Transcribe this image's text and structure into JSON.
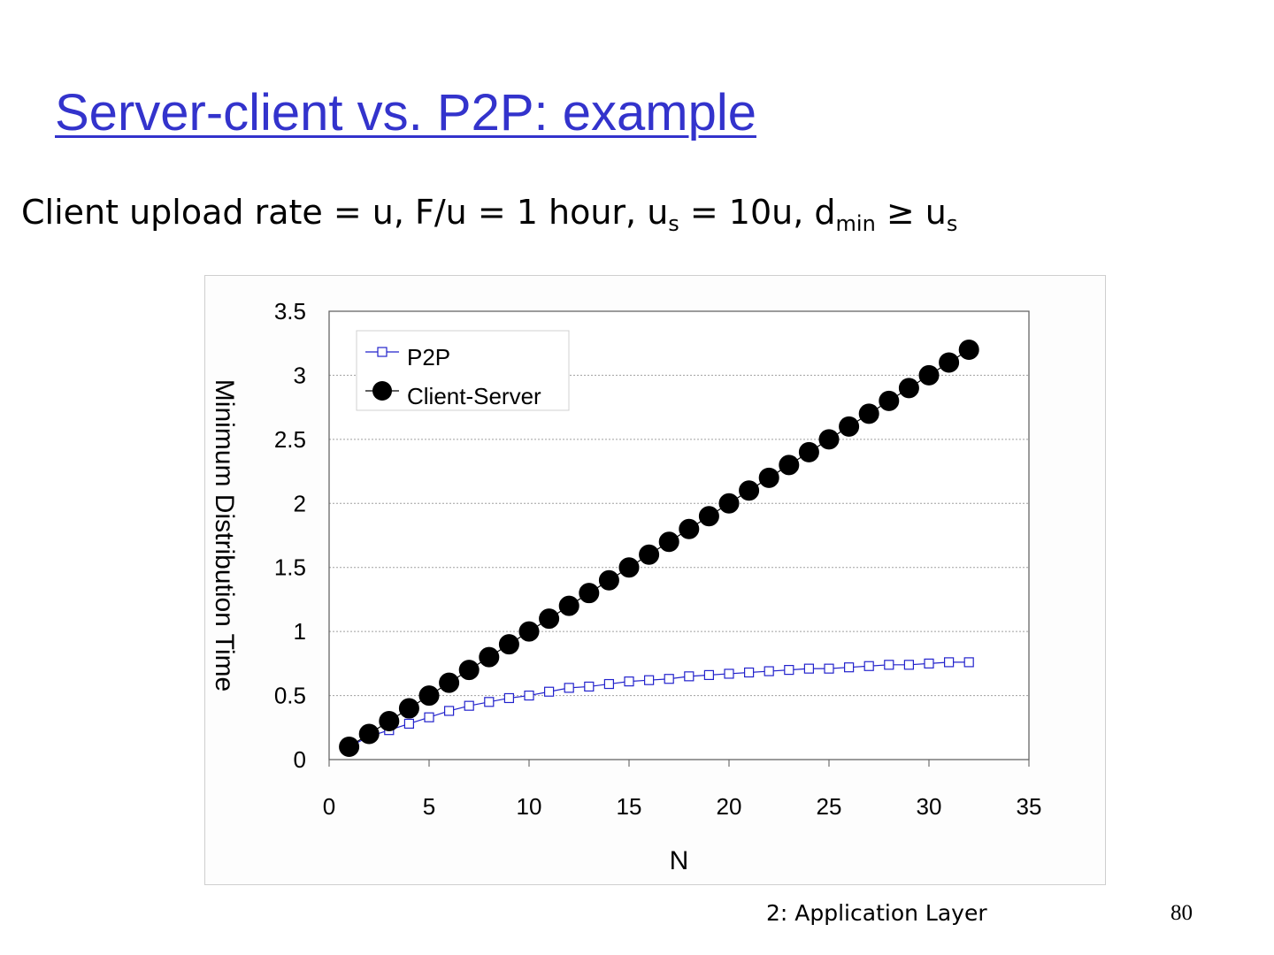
{
  "slide": {
    "title": "Server-client vs. P2P: example",
    "formula": {
      "part1": "Client upload rate = u,  F/u = 1 hour,  u",
      "sub1": "s",
      "part2": " = 10u,  d",
      "sub2": "min",
      "part3": " ≥ u",
      "sub3": "s"
    },
    "footer_label": "2: Application Layer",
    "page_number": "80"
  },
  "colors": {
    "title": "#3333cc",
    "p2p": "#2222cc",
    "client_server": "#000000",
    "gridline": "#a0a0a0"
  },
  "chart_data": {
    "type": "line",
    "title": "",
    "xlabel": "N",
    "ylabel": "Minimum Distribution Time",
    "xlim": [
      0,
      35
    ],
    "ylim": [
      0,
      3.5
    ],
    "xticks": [
      "0",
      "5",
      "10",
      "15",
      "20",
      "25",
      "30",
      "35"
    ],
    "yticks": [
      "0",
      "0.5",
      "1",
      "1.5",
      "2",
      "2.5",
      "3",
      "3.5"
    ],
    "grid": "horizontal dotted",
    "legend_position": "top-left",
    "x": [
      1,
      2,
      3,
      4,
      5,
      6,
      7,
      8,
      9,
      10,
      11,
      12,
      13,
      14,
      15,
      16,
      17,
      18,
      19,
      20,
      21,
      22,
      23,
      24,
      25,
      26,
      27,
      28,
      29,
      30,
      31,
      32
    ],
    "series": [
      {
        "name": "P2P",
        "marker": "open-square",
        "values": [
          0.1,
          0.18,
          0.23,
          0.28,
          0.33,
          0.38,
          0.42,
          0.45,
          0.48,
          0.5,
          0.53,
          0.56,
          0.57,
          0.59,
          0.61,
          0.62,
          0.63,
          0.65,
          0.66,
          0.67,
          0.68,
          0.69,
          0.7,
          0.71,
          0.71,
          0.72,
          0.73,
          0.74,
          0.74,
          0.75,
          0.76,
          0.76
        ]
      },
      {
        "name": "Client-Server",
        "marker": "filled-circle",
        "values": [
          0.1,
          0.2,
          0.3,
          0.4,
          0.5,
          0.6,
          0.7,
          0.8,
          0.9,
          1.0,
          1.1,
          1.2,
          1.3,
          1.4,
          1.5,
          1.6,
          1.7,
          1.8,
          1.9,
          2.0,
          2.1,
          2.2,
          2.3,
          2.4,
          2.5,
          2.6,
          2.7,
          2.8,
          2.9,
          3.0,
          3.1,
          3.2
        ]
      }
    ]
  }
}
